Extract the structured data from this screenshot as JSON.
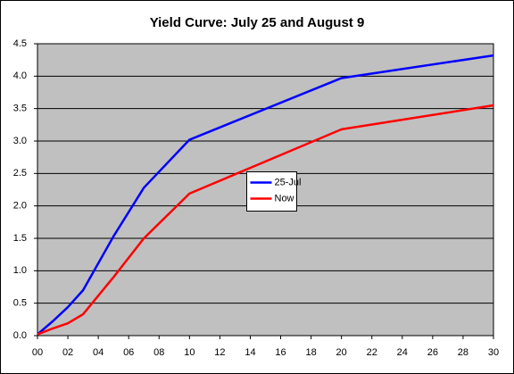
{
  "chart_data": {
    "type": "line",
    "title": "Yield Curve: July 25 and August 9",
    "x": [
      0,
      1,
      2,
      3,
      5,
      7,
      10,
      20,
      30
    ],
    "series": [
      {
        "name": "25-Jul",
        "color": "#0000ff",
        "values": [
          0.02,
          0.22,
          0.44,
          0.7,
          1.53,
          2.28,
          3.02,
          3.97,
          4.32
        ]
      },
      {
        "name": "Now",
        "color": "#ff0000",
        "values": [
          0.02,
          0.11,
          0.19,
          0.33,
          0.9,
          1.5,
          2.19,
          3.18,
          3.55
        ]
      }
    ],
    "xlim": [
      0,
      30
    ],
    "xticks": [
      {
        "value": 0,
        "label": "00"
      },
      {
        "value": 2,
        "label": "02"
      },
      {
        "value": 4,
        "label": "04"
      },
      {
        "value": 6,
        "label": "06"
      },
      {
        "value": 8,
        "label": "08"
      },
      10,
      12,
      14,
      16,
      18,
      20,
      22,
      24,
      26,
      28,
      30
    ],
    "ylim": [
      0,
      4.5
    ],
    "yticks": [
      {
        "value": 0,
        "label": "0.0"
      },
      0.5,
      {
        "value": 1,
        "label": "1.0"
      },
      1.5,
      {
        "value": 2,
        "label": "2.0"
      },
      2.5,
      {
        "value": 3,
        "label": "3.0"
      },
      3.5,
      {
        "value": 4,
        "label": "4.0"
      },
      4.5
    ],
    "grid": true,
    "legend": "center",
    "plot_background": "#c0c0c0"
  }
}
